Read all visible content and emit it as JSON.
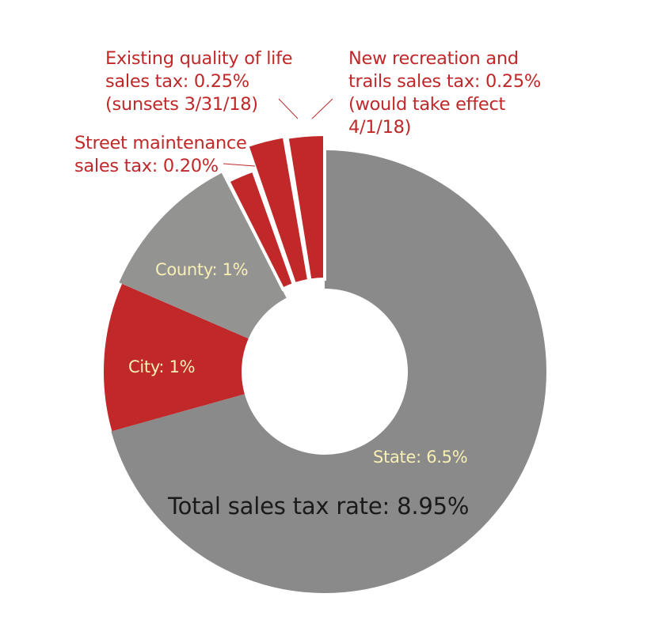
{
  "chart_data": {
    "type": "pie",
    "variant": "donut",
    "title": "",
    "center_note": "Total sales tax rate: 8.95%",
    "slices": [
      {
        "name": "State",
        "label": "State: 6.5%",
        "value": 6.5,
        "color": "#898a89",
        "exploded": false
      },
      {
        "name": "City",
        "label": "City: 1%",
        "value": 1.0,
        "color": "#c0282a",
        "exploded": false
      },
      {
        "name": "County",
        "label": "County: 1%",
        "value": 1.0,
        "color": "#939392",
        "exploded": false
      },
      {
        "name": "Street maintenance sales tax",
        "label": "Street maintenance sales tax: 0.20%",
        "value": 0.2,
        "color": "#c0282a",
        "exploded": true
      },
      {
        "name": "Existing quality of life sales tax",
        "label": "Existing quality of life sales tax: 0.25% (sunsets 3/31/18)",
        "value": 0.25,
        "color": "#c0282a",
        "exploded": true
      },
      {
        "name": "New recreation and trails sales tax",
        "label": "New recreation and trails sales tax: 0.25% (would take effect 4/1/18)",
        "value": 0.25,
        "color": "#c0282a",
        "exploded": true
      }
    ],
    "legend": "none (direct labels)"
  },
  "labels": {
    "qol": [
      "Existing quality of life",
      "sales tax: 0.25%",
      "(sunsets 3/31/18)"
    ],
    "newrec": [
      "New recreation and",
      "trails sales tax: 0.25%",
      "(would take effect",
      "4/1/18)"
    ],
    "street": [
      "Street maintenance",
      "sales tax: 0.20%"
    ],
    "county": "County: 1%",
    "city": "City: 1%",
    "state": "State: 6.5%",
    "total": "Total sales tax rate: 8.95%"
  }
}
